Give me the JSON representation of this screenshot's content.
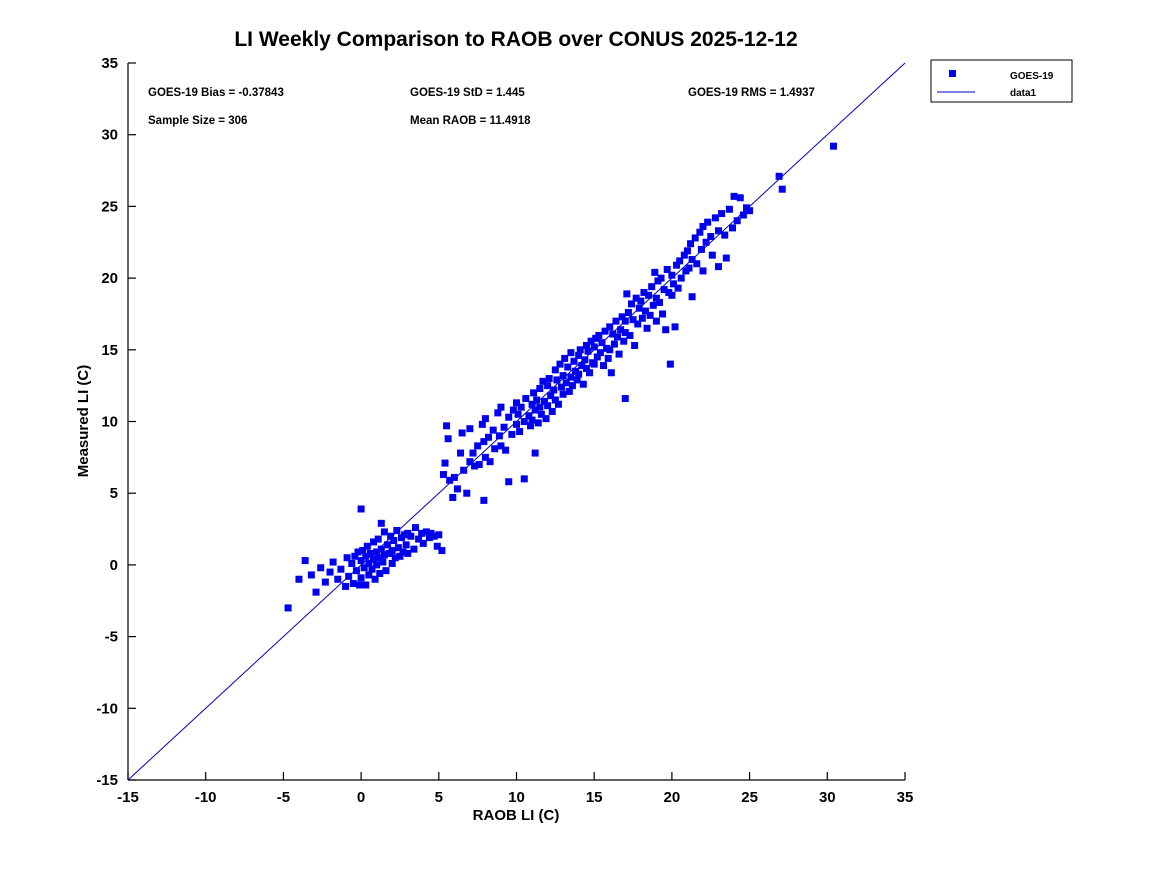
{
  "chart_data": {
    "type": "scatter",
    "title": "LI Weekly Comparison to RAOB over CONUS 2025-12-12",
    "xlabel": "RAOB LI (C)",
    "ylabel": "Measured LI (C)",
    "xlim": [
      -15,
      35
    ],
    "ylim": [
      -15,
      35
    ],
    "xticks": [
      -15,
      -10,
      -5,
      0,
      5,
      10,
      15,
      20,
      25,
      30,
      35
    ],
    "yticks": [
      -15,
      -10,
      -5,
      0,
      5,
      10,
      15,
      20,
      25,
      30,
      35
    ],
    "grid": false,
    "marker_color": "#0000EE",
    "line_color": "#0000CC",
    "stats": {
      "bias": "GOES-19 Bias = -0.37843",
      "std": "GOES-19 StD = 1.445",
      "rms": "GOES-19 RMS = 1.4937",
      "sample": "Sample Size = 306",
      "mean_raob": "Mean RAOB = 11.4918"
    },
    "legend": {
      "position": "top-right-outside",
      "items": [
        {
          "label": "GOES-19",
          "type": "marker"
        },
        {
          "label": "data1",
          "type": "line"
        }
      ]
    },
    "reference_line": {
      "name": "data1",
      "from": [
        -15,
        -15
      ],
      "to": [
        35,
        35
      ]
    },
    "series": [
      {
        "name": "GOES-19",
        "points": [
          [
            -4.7,
            -3.0
          ],
          [
            -4.0,
            -1.0
          ],
          [
            -3.6,
            0.3
          ],
          [
            -3.2,
            -0.7
          ],
          [
            -2.9,
            -1.9
          ],
          [
            -2.6,
            -0.2
          ],
          [
            -2.3,
            -1.2
          ],
          [
            -2.0,
            -0.5
          ],
          [
            -1.8,
            0.2
          ],
          [
            -1.5,
            -1.0
          ],
          [
            -1.3,
            -0.3
          ],
          [
            -1.0,
            -1.5
          ],
          [
            -0.9,
            0.5
          ],
          [
            -0.8,
            -0.8
          ],
          [
            -0.6,
            0.1
          ],
          [
            -0.5,
            -1.3
          ],
          [
            -0.4,
            0.6
          ],
          [
            -0.3,
            -0.4
          ],
          [
            -0.2,
            0.9
          ],
          [
            -0.1,
            -1.4
          ],
          [
            0.0,
            0.3
          ],
          [
            0.0,
            -0.9
          ],
          [
            0.0,
            3.9
          ],
          [
            0.1,
            1.0
          ],
          [
            0.2,
            -0.2
          ],
          [
            0.3,
            0.6
          ],
          [
            0.3,
            -1.4
          ],
          [
            0.4,
            1.3
          ],
          [
            0.5,
            0.1
          ],
          [
            0.5,
            -0.7
          ],
          [
            0.6,
            0.8
          ],
          [
            0.7,
            -0.3
          ],
          [
            0.8,
            1.6
          ],
          [
            0.8,
            0.4
          ],
          [
            0.9,
            -1.0
          ],
          [
            1.0,
            0.9
          ],
          [
            1.0,
            0.0
          ],
          [
            1.1,
            1.8
          ],
          [
            1.2,
            0.5
          ],
          [
            1.2,
            -0.6
          ],
          [
            1.3,
            1.1
          ],
          [
            1.3,
            2.9
          ],
          [
            1.4,
            0.2
          ],
          [
            1.5,
            2.3
          ],
          [
            1.5,
            0.7
          ],
          [
            1.6,
            -0.4
          ],
          [
            1.7,
            1.4
          ],
          [
            1.8,
            0.8
          ],
          [
            1.9,
            2.0
          ],
          [
            2.0,
            1.0
          ],
          [
            2.0,
            0.1
          ],
          [
            2.1,
            1.7
          ],
          [
            2.2,
            0.5
          ],
          [
            2.3,
            2.4
          ],
          [
            2.4,
            1.2
          ],
          [
            2.5,
            0.6
          ],
          [
            2.6,
            1.9
          ],
          [
            2.7,
            0.9
          ],
          [
            2.8,
            2.1
          ],
          [
            2.9,
            1.4
          ],
          [
            3.0,
            2.2
          ],
          [
            3.0,
            0.8
          ],
          [
            3.2,
            2.0
          ],
          [
            3.4,
            1.1
          ],
          [
            3.5,
            2.6
          ],
          [
            3.7,
            1.8
          ],
          [
            3.9,
            2.2
          ],
          [
            4.0,
            1.5
          ],
          [
            4.2,
            2.3
          ],
          [
            4.4,
            1.9
          ],
          [
            4.5,
            2.2
          ],
          [
            4.7,
            2.0
          ],
          [
            4.9,
            1.3
          ],
          [
            5.0,
            2.1
          ],
          [
            5.2,
            1.0
          ],
          [
            5.3,
            6.3
          ],
          [
            5.4,
            7.1
          ],
          [
            5.5,
            9.7
          ],
          [
            5.6,
            8.8
          ],
          [
            5.7,
            5.9
          ],
          [
            5.9,
            4.7
          ],
          [
            6.0,
            6.1
          ],
          [
            6.2,
            5.3
          ],
          [
            6.4,
            7.8
          ],
          [
            6.5,
            9.2
          ],
          [
            6.6,
            6.6
          ],
          [
            6.8,
            5.0
          ],
          [
            7.0,
            7.2
          ],
          [
            7.0,
            9.5
          ],
          [
            7.2,
            7.8
          ],
          [
            7.3,
            6.9
          ],
          [
            7.5,
            8.3
          ],
          [
            7.6,
            7.0
          ],
          [
            7.8,
            9.8
          ],
          [
            7.9,
            4.5
          ],
          [
            7.9,
            8.6
          ],
          [
            8.0,
            7.5
          ],
          [
            8.0,
            10.2
          ],
          [
            8.2,
            8.9
          ],
          [
            8.3,
            7.2
          ],
          [
            8.5,
            9.4
          ],
          [
            8.6,
            8.1
          ],
          [
            8.8,
            10.6
          ],
          [
            8.9,
            9.0
          ],
          [
            9.0,
            8.3
          ],
          [
            9.0,
            11.0
          ],
          [
            9.2,
            9.6
          ],
          [
            9.3,
            8.0
          ],
          [
            9.5,
            5.8
          ],
          [
            9.5,
            10.3
          ],
          [
            9.7,
            9.1
          ],
          [
            9.8,
            10.8
          ],
          [
            10.0,
            9.8
          ],
          [
            10.0,
            11.3
          ],
          [
            10.1,
            10.5
          ],
          [
            10.2,
            9.3
          ],
          [
            10.3,
            11.0
          ],
          [
            10.5,
            10.0
          ],
          [
            10.5,
            6.0
          ],
          [
            10.6,
            11.6
          ],
          [
            10.8,
            10.4
          ],
          [
            10.9,
            9.7
          ],
          [
            11.0,
            11.2
          ],
          [
            11.0,
            10.1
          ],
          [
            11.1,
            12.0
          ],
          [
            11.2,
            7.8
          ],
          [
            11.2,
            10.8
          ],
          [
            11.3,
            11.5
          ],
          [
            11.4,
            9.9
          ],
          [
            11.5,
            12.3
          ],
          [
            11.5,
            11.0
          ],
          [
            11.6,
            10.5
          ],
          [
            11.7,
            12.8
          ],
          [
            11.8,
            11.4
          ],
          [
            11.9,
            10.2
          ],
          [
            12.0,
            12.5
          ],
          [
            12.0,
            11.1
          ],
          [
            12.1,
            13.0
          ],
          [
            12.2,
            11.8
          ],
          [
            12.3,
            10.7
          ],
          [
            12.4,
            12.2
          ],
          [
            12.5,
            13.6
          ],
          [
            12.5,
            11.5
          ],
          [
            12.6,
            12.9
          ],
          [
            12.7,
            11.2
          ],
          [
            12.8,
            14.0
          ],
          [
            12.9,
            12.4
          ],
          [
            13.0,
            13.2
          ],
          [
            13.0,
            11.9
          ],
          [
            13.1,
            14.4
          ],
          [
            13.2,
            12.7
          ],
          [
            13.3,
            13.8
          ],
          [
            13.4,
            12.1
          ],
          [
            13.5,
            14.8
          ],
          [
            13.5,
            13.1
          ],
          [
            13.6,
            12.5
          ],
          [
            13.7,
            14.2
          ],
          [
            13.8,
            13.5
          ],
          [
            13.9,
            12.9
          ],
          [
            14.0,
            14.6
          ],
          [
            14.0,
            13.3
          ],
          [
            14.1,
            15.0
          ],
          [
            14.2,
            13.9
          ],
          [
            14.3,
            12.6
          ],
          [
            14.4,
            14.3
          ],
          [
            14.5,
            15.3
          ],
          [
            14.5,
            13.7
          ],
          [
            14.6,
            14.9
          ],
          [
            14.7,
            13.4
          ],
          [
            14.8,
            15.6
          ],
          [
            14.9,
            14.1
          ],
          [
            15.0,
            15.2
          ],
          [
            15.0,
            14.0
          ],
          [
            15.1,
            15.8
          ],
          [
            15.2,
            14.5
          ],
          [
            15.3,
            16.0
          ],
          [
            15.4,
            14.8
          ],
          [
            15.5,
            15.5
          ],
          [
            15.6,
            13.9
          ],
          [
            15.7,
            16.3
          ],
          [
            15.8,
            15.1
          ],
          [
            15.9,
            14.4
          ],
          [
            16.0,
            16.6
          ],
          [
            16.0,
            15.0
          ],
          [
            16.1,
            13.4
          ],
          [
            16.2,
            16.1
          ],
          [
            16.3,
            15.4
          ],
          [
            16.4,
            17.0
          ],
          [
            16.5,
            15.9
          ],
          [
            16.6,
            14.7
          ],
          [
            16.7,
            16.4
          ],
          [
            16.8,
            17.3
          ],
          [
            16.9,
            15.6
          ],
          [
            17.0,
            17.0
          ],
          [
            17.0,
            16.2
          ],
          [
            17.0,
            11.6
          ],
          [
            17.1,
            18.9
          ],
          [
            17.2,
            17.6
          ],
          [
            17.3,
            16.0
          ],
          [
            17.4,
            18.2
          ],
          [
            17.5,
            17.1
          ],
          [
            17.6,
            15.3
          ],
          [
            17.7,
            18.6
          ],
          [
            17.8,
            16.8
          ],
          [
            17.9,
            17.9
          ],
          [
            18.0,
            18.4
          ],
          [
            18.1,
            17.2
          ],
          [
            18.2,
            19.0
          ],
          [
            18.3,
            17.7
          ],
          [
            18.4,
            16.5
          ],
          [
            18.5,
            18.8
          ],
          [
            18.6,
            17.4
          ],
          [
            18.7,
            19.4
          ],
          [
            18.8,
            18.1
          ],
          [
            18.9,
            20.4
          ],
          [
            19.0,
            18.6
          ],
          [
            19.0,
            17.0
          ],
          [
            19.1,
            19.8
          ],
          [
            19.2,
            18.3
          ],
          [
            19.3,
            20.0
          ],
          [
            19.4,
            17.5
          ],
          [
            19.5,
            19.2
          ],
          [
            19.6,
            16.4
          ],
          [
            19.7,
            20.6
          ],
          [
            19.8,
            19.0
          ],
          [
            19.9,
            14.0
          ],
          [
            20.0,
            20.2
          ],
          [
            20.0,
            18.8
          ],
          [
            20.1,
            19.6
          ],
          [
            20.2,
            16.6
          ],
          [
            20.3,
            20.9
          ],
          [
            20.4,
            19.3
          ],
          [
            20.5,
            21.2
          ],
          [
            20.6,
            20.0
          ],
          [
            20.8,
            21.6
          ],
          [
            20.9,
            20.5
          ],
          [
            21.0,
            21.9
          ],
          [
            21.1,
            20.7
          ],
          [
            21.2,
            22.4
          ],
          [
            21.3,
            18.7
          ],
          [
            21.3,
            21.3
          ],
          [
            21.5,
            22.8
          ],
          [
            21.6,
            21.0
          ],
          [
            21.8,
            23.2
          ],
          [
            21.9,
            22.0
          ],
          [
            22.0,
            23.6
          ],
          [
            22.0,
            20.5
          ],
          [
            22.2,
            22.5
          ],
          [
            22.3,
            23.9
          ],
          [
            22.5,
            22.9
          ],
          [
            22.6,
            21.6
          ],
          [
            22.8,
            24.2
          ],
          [
            23.0,
            23.3
          ],
          [
            23.0,
            20.8
          ],
          [
            23.2,
            24.5
          ],
          [
            23.4,
            23.0
          ],
          [
            23.5,
            21.4
          ],
          [
            23.7,
            24.8
          ],
          [
            23.9,
            23.5
          ],
          [
            24.0,
            25.7
          ],
          [
            24.2,
            24.0
          ],
          [
            24.4,
            25.6
          ],
          [
            24.6,
            24.4
          ],
          [
            24.8,
            24.9
          ],
          [
            25.0,
            24.7
          ],
          [
            26.9,
            27.1
          ],
          [
            27.1,
            26.2
          ],
          [
            30.4,
            29.2
          ]
        ]
      }
    ]
  }
}
